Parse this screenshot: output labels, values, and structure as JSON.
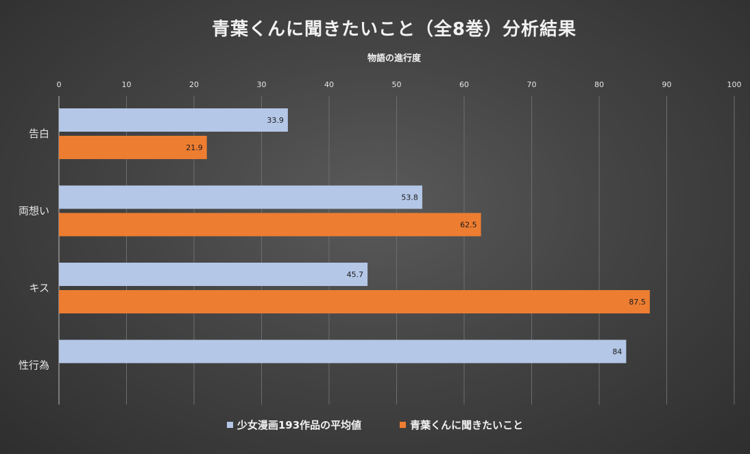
{
  "chart_data": {
    "type": "bar",
    "orientation": "horizontal",
    "title": "青葉くんに聞きたいこと（全8巻）分析結果",
    "xlabel": "物語の進行度",
    "xlim": [
      0,
      100
    ],
    "xticks": [
      "0",
      "10",
      "20",
      "30",
      "40",
      "50",
      "60",
      "70",
      "80",
      "90",
      "100"
    ],
    "categories": [
      "告白",
      "両想い",
      "キス",
      "性行為"
    ],
    "series": [
      {
        "name": "少女漫画193作品の平均値",
        "color": "#b4c7e7",
        "values": [
          33.9,
          53.8,
          45.7,
          84
        ]
      },
      {
        "name": "青葉くんに聞きたいこと",
        "color": "#ed7d31",
        "values": [
          21.9,
          62.5,
          87.5,
          null
        ]
      }
    ],
    "data_labels": [
      [
        "33.9",
        "53.8",
        "45.7",
        "84"
      ],
      [
        "21.9",
        "62.5",
        "87.5",
        ""
      ]
    ],
    "grid": true,
    "legend_position": "bottom"
  }
}
